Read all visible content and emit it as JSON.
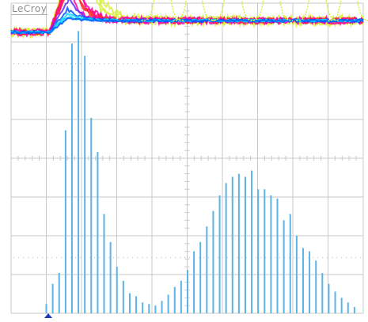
{
  "brand": {
    "label": "LeCroy"
  },
  "colors": {
    "background": "#ffffff",
    "grid": "#c8c8c8",
    "histogram": "#5ab4e6",
    "persistence": [
      "#d8f040",
      "#ff00a0",
      "#ff2a2a",
      "#5a2cff",
      "#0055ff",
      "#00d8ff"
    ],
    "trigger_marker": "#1e3cb4"
  },
  "icons": {
    "trigger": "trigger-marker-icon"
  },
  "chart_data": [
    {
      "type": "line",
      "series": [
        {
          "color": "#00d8ff",
          "x": [
            0,
            1,
            2,
            2.8,
            3.5,
            4.5,
            6,
            8,
            10
          ],
          "y": [
            0.75,
            0.75,
            0.4,
            0.45,
            0.45,
            0.45,
            0.45,
            0.45,
            0.45
          ]
        },
        {
          "color": "#ff2a2a",
          "x": [
            0,
            1,
            1.6,
            2.2,
            3.5,
            5,
            7,
            10
          ],
          "y": [
            0.7,
            0.55,
            -1.9,
            -1.3,
            0.1,
            0.2,
            0.2,
            0.2
          ]
        },
        {
          "color": "#d8f040",
          "x": [
            0,
            1,
            1.8,
            2.6,
            3.4,
            5.4,
            6.2,
            7.4,
            8,
            8.8,
            9.6,
            10
          ],
          "y": [
            0.8,
            0.5,
            -2.7,
            -1.5,
            0,
            0,
            -1.9,
            0.2,
            -1.6,
            0.2,
            -1.6,
            0.2
          ]
        }
      ]
    },
    {
      "type": "bar",
      "bins": 49,
      "x_range": [
        1,
        9.75
      ],
      "values": [
        0.3,
        0.95,
        1.3,
        5.9,
        8.7,
        9.1,
        8.3,
        6.3,
        5.2,
        3.2,
        2.3,
        1.5,
        1.05,
        0.65,
        0.55,
        0.35,
        0.3,
        0.25,
        0.4,
        0.6,
        0.85,
        1.05,
        1.4,
        2.0,
        2.3,
        2.8,
        3.3,
        3.8,
        4.2,
        4.4,
        4.5,
        4.4,
        4.6,
        4.0,
        4.0,
        3.8,
        3.7,
        3.0,
        3.2,
        2.5,
        2.1,
        2.0,
        1.7,
        1.3,
        0.95,
        0.7,
        0.5,
        0.35,
        0.2
      ],
      "ylim": [
        0,
        10
      ]
    }
  ]
}
